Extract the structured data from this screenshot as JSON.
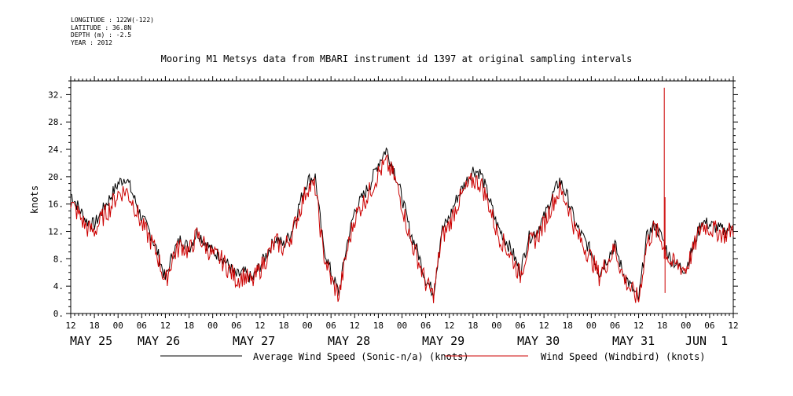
{
  "header": {
    "longitude": "LONGITUDE : 122W(-122)",
    "latitude": "LATITUDE : 36.8N",
    "depth": "DEPTH (m) : -2.5",
    "year": "YEAR : 2012"
  },
  "chart_data": {
    "type": "line",
    "title": "Mooring M1 Metsys data from MBARI instrument id 1397 at original sampling intervals",
    "ylabel": "knots",
    "ylim": [
      0,
      34
    ],
    "y_ticks": [
      "0.",
      "4.",
      "8.",
      "12.",
      "16.",
      "20.",
      "24.",
      "28.",
      "32."
    ],
    "x_hour_ticks": [
      "12",
      "18",
      "00",
      "06",
      "12",
      "18",
      "00",
      "06",
      "12",
      "18",
      "00",
      "06",
      "12",
      "18",
      "00",
      "06",
      "12",
      "18",
      "00",
      "06",
      "12",
      "18",
      "00",
      "06",
      "12",
      "18",
      "00",
      "06",
      "12"
    ],
    "x_day_labels": [
      "MAY 25",
      "MAY 26",
      "MAY 27",
      "MAY 28",
      "MAY 29",
      "MAY 30",
      "MAY 31",
      "JUN  1"
    ],
    "x_range_hours": [
      0,
      168
    ],
    "series": [
      {
        "name": "Average Wind Speed (Sonic-n/a) (knots)",
        "color": "#000000",
        "x_hours": [
          0,
          2,
          4,
          6,
          8,
          10,
          12,
          14,
          16,
          18,
          20,
          22,
          24,
          26,
          28,
          30,
          32,
          34,
          36,
          38,
          40,
          42,
          44,
          46,
          48,
          50,
          52,
          54,
          56,
          58,
          60,
          62,
          64,
          66,
          68,
          70,
          72,
          74,
          76,
          78,
          80,
          82,
          84,
          86,
          88,
          90,
          92,
          94,
          96,
          98,
          100,
          102,
          104,
          106,
          108,
          110,
          112,
          114,
          116,
          118,
          120,
          122,
          124,
          126,
          128,
          130,
          132,
          134,
          136,
          138,
          140,
          142,
          144,
          146,
          148,
          150,
          152,
          154,
          156,
          158,
          160,
          162,
          164,
          166,
          168
        ],
        "values": [
          17.5,
          15.5,
          13.5,
          13,
          15,
          17,
          19,
          20,
          17,
          14,
          12,
          9,
          5,
          9,
          11,
          9.5,
          12,
          10.5,
          9,
          8.5,
          7,
          5.5,
          6,
          5,
          7,
          9,
          11,
          10,
          12,
          16,
          19.5,
          20,
          10,
          6,
          3,
          10,
          15,
          17,
          19,
          22,
          24,
          21,
          17,
          12,
          9,
          5,
          3,
          12,
          14,
          17,
          19,
          21,
          20.5,
          17,
          13,
          11,
          9,
          6,
          11,
          12,
          14,
          17,
          19.5,
          17,
          13,
          11,
          9,
          6,
          8,
          10,
          6,
          4,
          2,
          11,
          13,
          11,
          8,
          7,
          6.5,
          10,
          13.5,
          13,
          12.5,
          12,
          13
        ]
      },
      {
        "name": "Wind Speed (Windbird) (knots)",
        "color": "#cc0000",
        "x_hours": [
          0,
          2,
          4,
          6,
          8,
          10,
          12,
          14,
          16,
          18,
          20,
          22,
          24,
          26,
          28,
          30,
          32,
          34,
          36,
          38,
          40,
          42,
          44,
          46,
          48,
          50,
          52,
          54,
          56,
          58,
          60,
          62,
          64,
          66,
          68,
          70,
          72,
          74,
          76,
          78,
          80,
          82,
          84,
          86,
          88,
          90,
          92,
          94,
          96,
          98,
          100,
          102,
          104,
          106,
          108,
          110,
          112,
          114,
          116,
          118,
          120,
          122,
          124,
          126,
          128,
          130,
          132,
          134,
          136,
          138,
          140,
          142,
          144,
          146,
          148,
          150,
          152,
          154,
          156,
          158,
          160,
          162,
          164,
          166,
          168
        ],
        "values": [
          16,
          14.5,
          12.5,
          12,
          14,
          15.5,
          17.5,
          18,
          16,
          13,
          11,
          8.5,
          4.5,
          8.5,
          10,
          9,
          11.5,
          10,
          8.5,
          8,
          6.5,
          5,
          5.5,
          4.5,
          6.5,
          8.5,
          10.5,
          9.5,
          11.5,
          15,
          18.5,
          18.5,
          9,
          5,
          2.5,
          9,
          14,
          16,
          18,
          20.5,
          22,
          20,
          16,
          11,
          8,
          4.5,
          2.5,
          11,
          13,
          16,
          18,
          19.5,
          19,
          16,
          12,
          10,
          8,
          5.5,
          10,
          11,
          13,
          16,
          18,
          16,
          12,
          10,
          8,
          5.5,
          7.5,
          9.5,
          5.5,
          3.5,
          2,
          10,
          12.5,
          10.5,
          7.5,
          7,
          6.5,
          9.5,
          13,
          12.5,
          12,
          11.5,
          12.5
        ]
      }
    ],
    "spike": {
      "x_hour": 150.5,
      "value": 33
    }
  },
  "legend": {
    "black_label": "Average Wind Speed (Sonic-n/a) (knots)",
    "red_label": "Wind Speed (Windbird) (knots)"
  }
}
